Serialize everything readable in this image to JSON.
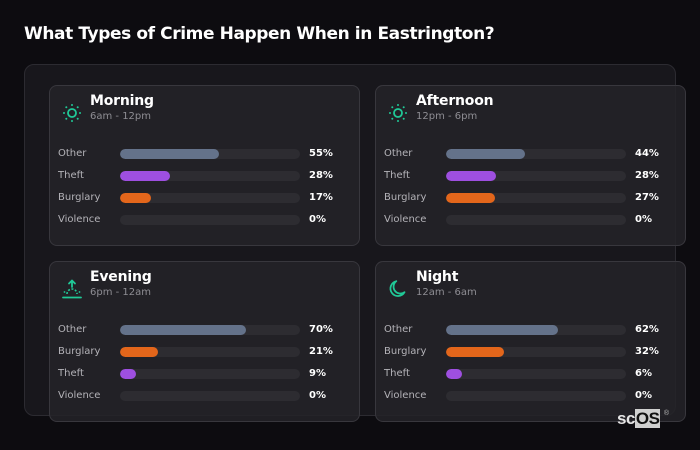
{
  "header": {
    "title": "What Types of Crime Happen When in Eastrington?"
  },
  "colors": {
    "Other": "#64728a",
    "Theft": "#9e4fe0",
    "Burglary": "#e3661b",
    "Violence": "#2d2c31",
    "icon_accent": "#20c997"
  },
  "cards": [
    {
      "name": "Morning",
      "range": "6am - 12pm",
      "icon": "sun-icon",
      "rows": [
        {
          "label": "Other",
          "value": 55,
          "display": "55%"
        },
        {
          "label": "Theft",
          "value": 28,
          "display": "28%"
        },
        {
          "label": "Burglary",
          "value": 17,
          "display": "17%"
        },
        {
          "label": "Violence",
          "value": 0,
          "display": "0%"
        }
      ]
    },
    {
      "name": "Afternoon",
      "range": "12pm - 6pm",
      "icon": "sun-icon",
      "rows": [
        {
          "label": "Other",
          "value": 44,
          "display": "44%"
        },
        {
          "label": "Theft",
          "value": 28,
          "display": "28%"
        },
        {
          "label": "Burglary",
          "value": 27,
          "display": "27%"
        },
        {
          "label": "Violence",
          "value": 0,
          "display": "0%"
        }
      ]
    },
    {
      "name": "Evening",
      "range": "6pm - 12am",
      "icon": "sunset-icon",
      "rows": [
        {
          "label": "Other",
          "value": 70,
          "display": "70%"
        },
        {
          "label": "Burglary",
          "value": 21,
          "display": "21%"
        },
        {
          "label": "Theft",
          "value": 9,
          "display": "9%"
        },
        {
          "label": "Violence",
          "value": 0,
          "display": "0%"
        }
      ]
    },
    {
      "name": "Night",
      "range": "12am - 6am",
      "icon": "moon-icon",
      "rows": [
        {
          "label": "Other",
          "value": 62,
          "display": "62%"
        },
        {
          "label": "Burglary",
          "value": 32,
          "display": "32%"
        },
        {
          "label": "Theft",
          "value": 6,
          "display": "6%"
        },
        {
          "label": "Violence",
          "value": 0,
          "display": "0%"
        }
      ]
    }
  ],
  "logo": {
    "sc": "sc",
    "os": "OS",
    "reg": "®"
  },
  "chart_data": {
    "type": "bar",
    "orientation": "horizontal",
    "title": "What Types of Crime Happen When in Eastrington?",
    "xlabel": "",
    "ylabel": "",
    "xlim": [
      0,
      100
    ],
    "grid": false,
    "legend": "none",
    "panels": [
      {
        "title": "Morning",
        "subtitle": "6am - 12pm",
        "categories": [
          "Other",
          "Theft",
          "Burglary",
          "Violence"
        ],
        "values": [
          55,
          28,
          17,
          0
        ]
      },
      {
        "title": "Afternoon",
        "subtitle": "12pm - 6pm",
        "categories": [
          "Other",
          "Theft",
          "Burglary",
          "Violence"
        ],
        "values": [
          44,
          28,
          27,
          0
        ]
      },
      {
        "title": "Evening",
        "subtitle": "6pm - 12am",
        "categories": [
          "Other",
          "Burglary",
          "Theft",
          "Violence"
        ],
        "values": [
          70,
          21,
          9,
          0
        ]
      },
      {
        "title": "Night",
        "subtitle": "12am - 6am",
        "categories": [
          "Other",
          "Burglary",
          "Theft",
          "Violence"
        ],
        "values": [
          62,
          32,
          6,
          0
        ]
      }
    ],
    "units": "%"
  }
}
